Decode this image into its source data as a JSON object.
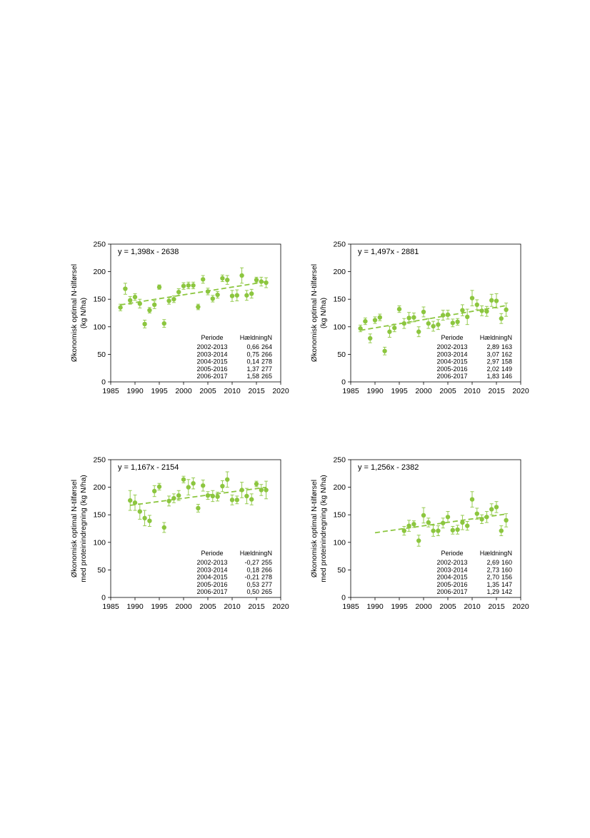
{
  "accent_color": "#8cc63f",
  "axis_color": "#000000",
  "chart_data": [
    {
      "type": "scatter",
      "panel": "top-left",
      "equation": "y = 1,398x - 2638",
      "ylabel_lines": [
        "Økonomisk optimal N-tilførsel",
        "(kg N/ha)"
      ],
      "xlim": [
        1985,
        2020
      ],
      "ylim": [
        0,
        250
      ],
      "xticks": [
        "1985",
        "1990",
        "1995",
        "2000",
        "2005",
        "2010",
        "2015",
        "2020"
      ],
      "yticks": [
        "0",
        "50",
        "100",
        "150",
        "200",
        "250"
      ],
      "grid": false,
      "series": [
        {
          "x": [
            1987,
            1988,
            1989,
            1990,
            1991,
            1992,
            1993,
            1994,
            1995,
            1996,
            1997,
            1998,
            1999,
            2000,
            2001,
            2002,
            2003,
            2004,
            2005,
            2006,
            2007,
            2008,
            2009,
            2010,
            2011,
            2012,
            2013,
            2014,
            2015,
            2016,
            2017
          ],
          "y": [
            135,
            169,
            148,
            154,
            142,
            105,
            130,
            140,
            172,
            106,
            147,
            150,
            163,
            174,
            175,
            175,
            136,
            186,
            164,
            151,
            158,
            188,
            185,
            156,
            157,
            193,
            157,
            160,
            185,
            182,
            180
          ],
          "err": [
            6,
            10,
            7,
            6,
            8,
            7,
            5,
            7,
            4,
            7,
            6,
            6,
            6,
            6,
            6,
            6,
            5,
            7,
            6,
            6,
            6,
            6,
            8,
            10,
            10,
            14,
            9,
            8,
            5,
            8,
            9
          ]
        }
      ],
      "trend": {
        "x": [
          1987,
          2017
        ]
      },
      "table": {
        "headers": [
          "Periode",
          "Hældning",
          "N"
        ],
        "rows": [
          [
            "2002-2013",
            "0,66",
            "264"
          ],
          [
            "2003-2014",
            "0,75",
            "266"
          ],
          [
            "2004-2015",
            "0,14",
            "278"
          ],
          [
            "2005-2016",
            "1,37",
            "277"
          ],
          [
            "2006-2017",
            "1,58",
            "265"
          ]
        ]
      }
    },
    {
      "type": "scatter",
      "panel": "top-right",
      "equation": "y = 1,497x - 2881",
      "ylabel_lines": [
        "Økonomisk optimal N-tilførsel",
        "(kg N/ha)"
      ],
      "xlim": [
        1985,
        2020
      ],
      "ylim": [
        0,
        250
      ],
      "xticks": [
        "1985",
        "1990",
        "1995",
        "2000",
        "2005",
        "2010",
        "2015",
        "2020"
      ],
      "yticks": [
        "0",
        "50",
        "100",
        "150",
        "200",
        "250"
      ],
      "grid": false,
      "series": [
        {
          "x": [
            1987,
            1988,
            1989,
            1990,
            1991,
            1992,
            1993,
            1994,
            1995,
            1996,
            1997,
            1998,
            1999,
            2000,
            2001,
            2002,
            2003,
            2004,
            2005,
            2006,
            2007,
            2008,
            2009,
            2010,
            2011,
            2012,
            2013,
            2014,
            2015,
            2016,
            2017
          ],
          "y": [
            97,
            110,
            79,
            112,
            117,
            56,
            91,
            98,
            132,
            106,
            116,
            117,
            91,
            127,
            106,
            101,
            104,
            121,
            122,
            107,
            109,
            130,
            118,
            152,
            140,
            129,
            128,
            148,
            147,
            115,
            131
          ],
          "err": [
            6,
            6,
            8,
            6,
            6,
            7,
            10,
            7,
            6,
            9,
            10,
            8,
            9,
            9,
            9,
            9,
            9,
            9,
            8,
            7,
            6,
            10,
            14,
            14,
            9,
            9,
            9,
            11,
            13,
            9,
            12
          ]
        }
      ],
      "trend": {
        "x": [
          1987,
          2017
        ]
      },
      "table": {
        "headers": [
          "Periode",
          "Hældning",
          "N"
        ],
        "rows": [
          [
            "2002-2013",
            "2,89",
            "163"
          ],
          [
            "2003-2014",
            "3,07",
            "162"
          ],
          [
            "2004-2015",
            "2,97",
            "158"
          ],
          [
            "2005-2016",
            "2,02",
            "149"
          ],
          [
            "2006-2017",
            "1,83",
            "146"
          ]
        ]
      }
    },
    {
      "type": "scatter",
      "panel": "bottom-left",
      "equation": "y = 1,167x - 2154",
      "ylabel_lines": [
        "Økonomisk optimal N-tilførsel",
        "med proteinindregning (kg N/ha)"
      ],
      "xlim": [
        1985,
        2020
      ],
      "ylim": [
        0,
        250
      ],
      "xticks": [
        "1985",
        "1990",
        "1995",
        "2000",
        "2005",
        "2010",
        "2015",
        "2020"
      ],
      "yticks": [
        "0",
        "50",
        "100",
        "150",
        "200",
        "250"
      ],
      "grid": false,
      "series": [
        {
          "x": [
            1989,
            1990,
            1991,
            1992,
            1993,
            1994,
            1995,
            1996,
            1997,
            1998,
            1999,
            2000,
            2001,
            2002,
            2003,
            2004,
            2005,
            2006,
            2007,
            2008,
            2009,
            2010,
            2011,
            2012,
            2013,
            2014,
            2015,
            2016,
            2017
          ],
          "y": [
            176,
            172,
            156,
            144,
            139,
            193,
            201,
            127,
            175,
            180,
            185,
            214,
            200,
            207,
            162,
            203,
            185,
            184,
            183,
            202,
            214,
            177,
            177,
            195,
            184,
            178,
            206,
            195,
            195
          ],
          "err": [
            18,
            14,
            14,
            14,
            10,
            10,
            6,
            9,
            9,
            8,
            9,
            6,
            14,
            10,
            7,
            10,
            7,
            10,
            8,
            10,
            14,
            9,
            7,
            14,
            14,
            10,
            5,
            10,
            16
          ]
        }
      ],
      "trend": {
        "x": [
          1989,
          2017
        ]
      },
      "table": {
        "headers": [
          "Periode",
          "Hældning",
          "N"
        ],
        "rows": [
          [
            "2002-2013",
            "-0,27",
            "255"
          ],
          [
            "2003-2014",
            "0,18",
            "266"
          ],
          [
            "2004-2015",
            "-0,21",
            "278"
          ],
          [
            "2005-2016",
            "0,53",
            "277"
          ],
          [
            "2006-2017",
            "0,50",
            "265"
          ]
        ]
      }
    },
    {
      "type": "scatter",
      "panel": "bottom-right",
      "equation": "y = 1,256x - 2382",
      "ylabel_lines": [
        "Økonomisk optimal N-tilførsel",
        "med proteinindregning (kg N/ha)"
      ],
      "xlim": [
        1985,
        2020
      ],
      "ylim": [
        0,
        250
      ],
      "xticks": [
        "1985",
        "1990",
        "1995",
        "2000",
        "2005",
        "2010",
        "2015",
        "2020"
      ],
      "yticks": [
        "0",
        "50",
        "100",
        "150",
        "200",
        "250"
      ],
      "grid": false,
      "series": [
        {
          "x": [
            1996,
            1997,
            1998,
            1999,
            2000,
            2001,
            2002,
            2003,
            2004,
            2005,
            2006,
            2007,
            2008,
            2009,
            2010,
            2011,
            2012,
            2013,
            2014,
            2015,
            2016,
            2017
          ],
          "y": [
            121,
            130,
            133,
            103,
            149,
            136,
            121,
            121,
            135,
            146,
            122,
            123,
            136,
            130,
            178,
            152,
            142,
            146,
            160,
            164,
            121,
            140
          ],
          "err": [
            8,
            10,
            6,
            10,
            14,
            8,
            10,
            9,
            9,
            10,
            7,
            8,
            13,
            8,
            14,
            10,
            8,
            10,
            10,
            10,
            9,
            12
          ]
        }
      ],
      "trend": {
        "x": [
          1990,
          2017
        ]
      },
      "table": {
        "headers": [
          "Periode",
          "Hældning",
          "N"
        ],
        "rows": [
          [
            "2002-2013",
            "2,69",
            "160"
          ],
          [
            "2003-2014",
            "2,73",
            "160"
          ],
          [
            "2004-2015",
            "2,70",
            "156"
          ],
          [
            "2005-2016",
            "1,35",
            "147"
          ],
          [
            "2006-2017",
            "1,29",
            "142"
          ]
        ]
      }
    }
  ]
}
